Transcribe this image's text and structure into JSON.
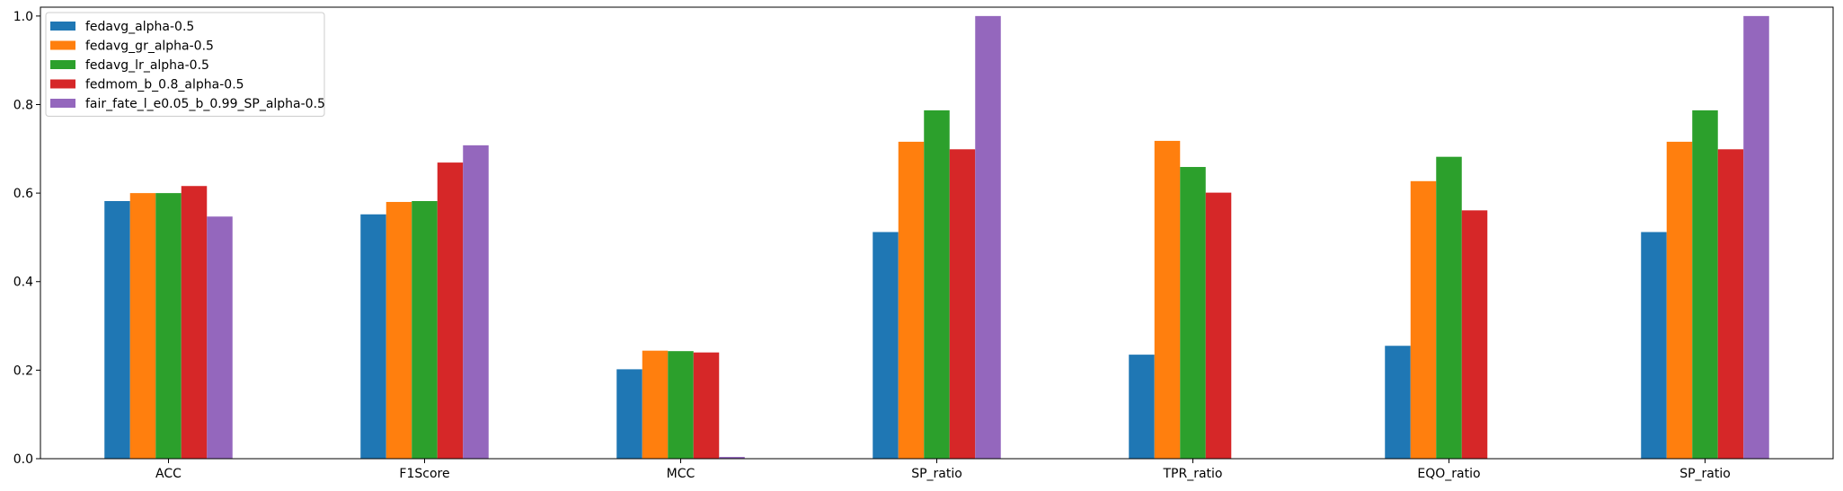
{
  "chart_data": {
    "type": "bar",
    "title": "",
    "xlabel": "",
    "ylabel": "",
    "ylim": [
      0,
      1.02
    ],
    "yticks": [
      "0.0",
      "0.2",
      "0.4",
      "0.6",
      "0.8",
      "1.0"
    ],
    "categories": [
      "ACC",
      "F1Score",
      "MCC",
      "SP_ratio",
      "TPR_ratio",
      "EQO_ratio",
      "SP_ratio"
    ],
    "series": [
      {
        "name": "fedavg_alpha-0.5",
        "color": "#1f77b4",
        "values": [
          0.582,
          0.552,
          0.202,
          0.512,
          0.235,
          0.255,
          0.512
        ]
      },
      {
        "name": "fedavg_gr_alpha-0.5",
        "color": "#ff7f0e",
        "values": [
          0.6,
          0.58,
          0.244,
          0.716,
          0.718,
          0.627,
          0.716
        ]
      },
      {
        "name": "fedavg_lr_alpha-0.5",
        "color": "#2ca02c",
        "values": [
          0.6,
          0.582,
          0.243,
          0.787,
          0.659,
          0.682,
          0.787
        ]
      },
      {
        "name": "fedmom_b_0.8_alpha-0.5",
        "color": "#d62728",
        "values": [
          0.616,
          0.669,
          0.24,
          0.699,
          0.601,
          0.561,
          0.699
        ]
      },
      {
        "name": "fair_fate_l_e0.05_b_0.99_SP_alpha-0.5",
        "color": "#9467bd",
        "values": [
          0.547,
          0.708,
          0.004,
          1.0,
          0.0,
          0.0,
          1.0
        ]
      }
    ],
    "grid": false,
    "legend_position": "top-left"
  }
}
